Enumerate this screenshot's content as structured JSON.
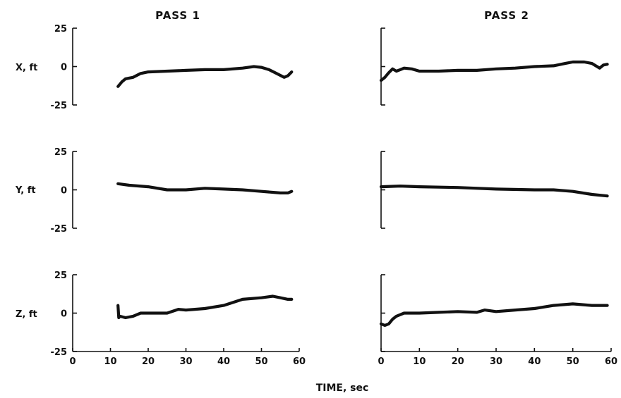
{
  "chart_data": {
    "type": "line",
    "column_titles": [
      "PASS 1",
      "PASS 2"
    ],
    "row_labels": [
      "X, ft",
      "Y, ft",
      "Z, ft"
    ],
    "xlabel": "TIME, sec",
    "xlim": [
      0,
      60
    ],
    "x_ticks": [
      "0",
      "10",
      "20",
      "30",
      "40",
      "50",
      "60"
    ],
    "ylim": [
      -25,
      25
    ],
    "y_ticks": [
      "25",
      "0",
      "-25"
    ],
    "panels": [
      {
        "row": "X, ft",
        "column": "PASS 1",
        "x": [
          12,
          13,
          14,
          15,
          16,
          18,
          20,
          25,
          30,
          35,
          40,
          45,
          48,
          50,
          52,
          54,
          56,
          57,
          58
        ],
        "y": [
          -13,
          -10,
          -8,
          -7.5,
          -7,
          -4.5,
          -3.5,
          -3,
          -2.5,
          -2,
          -2,
          -1,
          0,
          -0.5,
          -2,
          -4.5,
          -7,
          -6,
          -3.5
        ]
      },
      {
        "row": "X, ft",
        "column": "PASS 2",
        "x": [
          0,
          1,
          2,
          3,
          4,
          5,
          6,
          8,
          10,
          15,
          20,
          25,
          30,
          35,
          40,
          45,
          48,
          50,
          53,
          55,
          57,
          58,
          59
        ],
        "y": [
          -9,
          -7,
          -4,
          -1.5,
          -3,
          -2,
          -1,
          -1.5,
          -3,
          -3,
          -2.5,
          -2.5,
          -1.5,
          -1,
          0,
          0.5,
          2,
          3,
          3,
          2,
          -1,
          1,
          1.5
        ]
      },
      {
        "row": "Y, ft",
        "column": "PASS 1",
        "x": [
          12,
          15,
          20,
          25,
          30,
          35,
          40,
          45,
          50,
          55,
          57,
          58
        ],
        "y": [
          4,
          3,
          2,
          0,
          0,
          1,
          0.5,
          0,
          -1,
          -2,
          -2,
          -1
        ]
      },
      {
        "row": "Y, ft",
        "column": "PASS 2",
        "x": [
          0,
          5,
          10,
          20,
          30,
          40,
          45,
          50,
          55,
          59
        ],
        "y": [
          2,
          2.5,
          2,
          1.5,
          0.5,
          0,
          0,
          -1,
          -3,
          -4
        ]
      },
      {
        "row": "Z, ft",
        "column": "PASS 1",
        "x": [
          12,
          12.2,
          12.5,
          14,
          16,
          18,
          20,
          25,
          28,
          30,
          35,
          40,
          45,
          50,
          53,
          55,
          57,
          58
        ],
        "y": [
          5,
          -3,
          -2,
          -3,
          -2,
          0,
          0,
          0,
          2.5,
          2,
          3,
          5,
          9,
          10,
          11,
          10,
          9,
          9
        ]
      },
      {
        "row": "Z, ft",
        "column": "PASS 2",
        "x": [
          0,
          1,
          2,
          3,
          4,
          5,
          6,
          8,
          10,
          15,
          20,
          25,
          27,
          30,
          35,
          40,
          45,
          50,
          55,
          59
        ],
        "y": [
          -7,
          -8,
          -7,
          -4,
          -2,
          -1,
          0,
          0,
          0,
          0.5,
          1,
          0.5,
          2,
          1,
          2,
          3,
          5,
          6,
          5,
          5
        ]
      }
    ]
  }
}
